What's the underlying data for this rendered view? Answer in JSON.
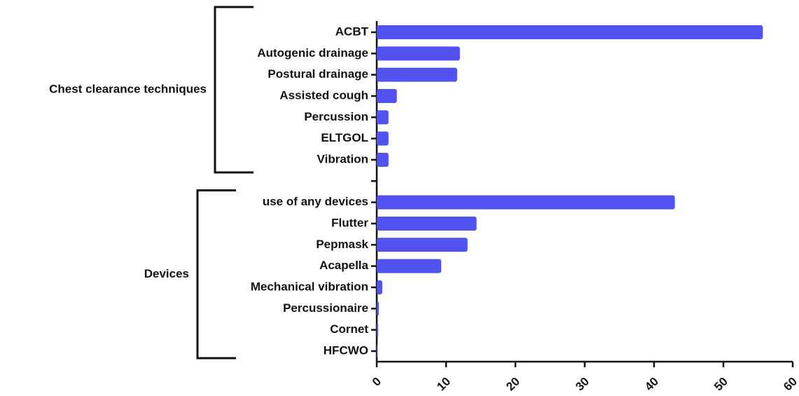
{
  "chart_data": {
    "type": "bar",
    "orientation": "horizontal",
    "categories": [
      "ACBT",
      "Autogenic drainage",
      "Postural drainage",
      "Assisted cough",
      "Percussion",
      "ELTGOL",
      "Vibration",
      null,
      "use of any devices",
      "Flutter",
      "Pepmask",
      "Acapella",
      "Mechanical vibration",
      "Percussionaire",
      "Cornet",
      "HFCWO"
    ],
    "values": [
      55.7,
      12.0,
      11.6,
      2.9,
      1.7,
      1.7,
      1.7,
      null,
      43.0,
      14.4,
      13.1,
      9.3,
      0.8,
      0.3,
      0.2,
      0.1
    ],
    "groups": [
      "Chest clearance techniques",
      "Devices"
    ],
    "color": "#5252f0",
    "xlim": [
      0,
      60
    ],
    "xticks": [
      0,
      10,
      20,
      30,
      40,
      50,
      60
    ],
    "grid": false
  }
}
